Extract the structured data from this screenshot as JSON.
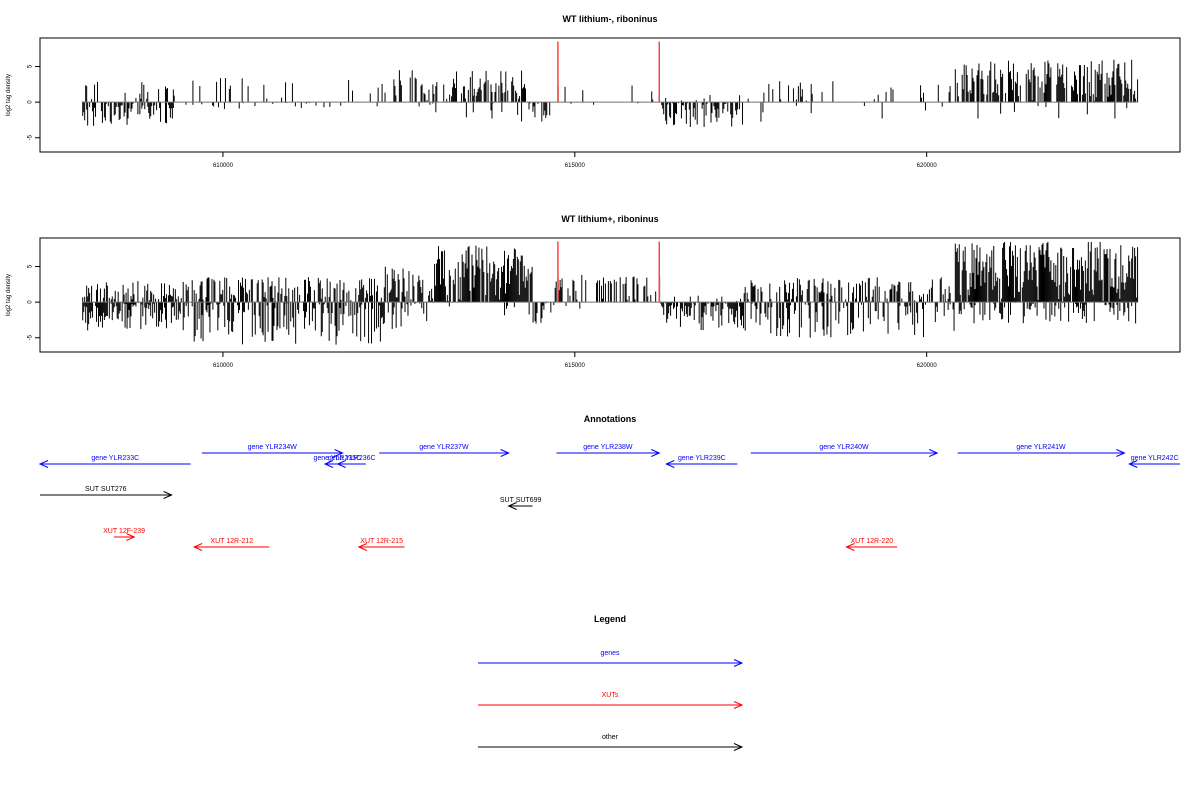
{
  "colors": {
    "genes": "#0000ff",
    "XUTs": "#ff0000",
    "other": "#000000",
    "marker": "#ff4040",
    "axis": "#000000",
    "zeroline": "#707070"
  },
  "chart_data": [
    {
      "type": "bar",
      "title": "WT lithium-, riboninus",
      "ylabel": "log2 tag density",
      "xlim": [
        607400,
        623600
      ],
      "ylim": [
        -7,
        9
      ],
      "xticks": [
        610000,
        615000,
        620000
      ],
      "xtick_labels": [
        "610000",
        "615000",
        "620000"
      ],
      "yticks": [
        -5,
        0,
        5
      ],
      "ytick_labels": [
        "-5",
        "0",
        "5"
      ],
      "data_extent": [
        608000,
        623000
      ],
      "red_markers": [
        614760,
        616200
      ],
      "red_marker_height": 8.5,
      "segments": [
        {
          "start": 608000,
          "end": 609300,
          "density": 0.25,
          "max": 3,
          "neg": 0.6,
          "nmax": 3.5
        },
        {
          "start": 609300,
          "end": 612500,
          "density": 0.12,
          "max": 3.5,
          "neg": 0.1,
          "nmax": 1
        },
        {
          "start": 612500,
          "end": 614300,
          "density": 0.5,
          "max": 4.5,
          "neg": 0.05,
          "nmax": 3
        },
        {
          "start": 614300,
          "end": 614700,
          "density": 0.02,
          "max": 1,
          "neg": 0.5,
          "nmax": 3
        },
        {
          "start": 614700,
          "end": 616200,
          "density": 0.08,
          "max": 2.5,
          "neg": 0.02,
          "nmax": 1
        },
        {
          "start": 616200,
          "end": 617400,
          "density": 0.1,
          "max": 1,
          "neg": 0.7,
          "nmax": 3.5
        },
        {
          "start": 617400,
          "end": 620400,
          "density": 0.12,
          "max": 3,
          "neg": 0.05,
          "nmax": 3
        },
        {
          "start": 620400,
          "end": 623000,
          "density": 0.7,
          "max": 6,
          "neg": 0.05,
          "nmax": 2.5
        }
      ]
    },
    {
      "type": "bar",
      "title": "WT lithium+, riboninus",
      "ylabel": "log2 tag density",
      "xlim": [
        607400,
        623600
      ],
      "ylim": [
        -7,
        9
      ],
      "xticks": [
        610000,
        615000,
        620000
      ],
      "xtick_labels": [
        "610000",
        "615000",
        "620000"
      ],
      "yticks": [
        -5,
        0,
        5
      ],
      "ytick_labels": [
        "-5",
        "0",
        "5"
      ],
      "data_extent": [
        608000,
        623000
      ],
      "red_markers": [
        614760,
        616200
      ],
      "red_marker_height": 8.5,
      "segments": [
        {
          "start": 608000,
          "end": 609500,
          "density": 0.6,
          "max": 3,
          "neg": 0.8,
          "nmax": 4
        },
        {
          "start": 609500,
          "end": 612300,
          "density": 0.55,
          "max": 3.5,
          "neg": 0.6,
          "nmax": 6
        },
        {
          "start": 612300,
          "end": 613000,
          "density": 0.7,
          "max": 5,
          "neg": 0.4,
          "nmax": 4
        },
        {
          "start": 613000,
          "end": 614400,
          "density": 0.9,
          "max": 8,
          "neg": 0.05,
          "nmax": 2
        },
        {
          "start": 614400,
          "end": 614700,
          "density": 0.05,
          "max": 1,
          "neg": 0.7,
          "nmax": 3
        },
        {
          "start": 614700,
          "end": 616200,
          "density": 0.5,
          "max": 4,
          "neg": 0.05,
          "nmax": 1
        },
        {
          "start": 616200,
          "end": 617400,
          "density": 0.1,
          "max": 1,
          "neg": 0.8,
          "nmax": 4
        },
        {
          "start": 617400,
          "end": 620400,
          "density": 0.45,
          "max": 3.5,
          "neg": 0.5,
          "nmax": 5
        },
        {
          "start": 620400,
          "end": 623000,
          "density": 0.95,
          "max": 8.5,
          "neg": 0.4,
          "nmax": 3
        }
      ]
    }
  ],
  "annotations": {
    "title": "Annotations",
    "xlim": [
      607400,
      623600
    ],
    "items": [
      {
        "label": "gene YLR233C",
        "start": 607400,
        "end": 609540,
        "strand": "-",
        "category": "genes",
        "row": 1
      },
      {
        "label": "gene YLR234W",
        "start": 609700,
        "end": 611700,
        "strand": "+",
        "category": "genes",
        "row": 0
      },
      {
        "label": "gene YLR235C",
        "start": 611450,
        "end": 611800,
        "strand": "-",
        "category": "genes",
        "row": 1
      },
      {
        "label": "gene YLR236C",
        "start": 611630,
        "end": 612030,
        "strand": "-",
        "category": "genes",
        "row": 1
      },
      {
        "label": "gene YLR237W",
        "start": 612220,
        "end": 614060,
        "strand": "+",
        "category": "genes",
        "row": 0
      },
      {
        "label": "gene YLR238W",
        "start": 614740,
        "end": 616200,
        "strand": "+",
        "category": "genes",
        "row": 0
      },
      {
        "label": "gene YLR239C",
        "start": 616300,
        "end": 617310,
        "strand": "-",
        "category": "genes",
        "row": 1
      },
      {
        "label": "gene YLR240W",
        "start": 617500,
        "end": 620150,
        "strand": "+",
        "category": "genes",
        "row": 0
      },
      {
        "label": "gene YLR241W",
        "start": 620440,
        "end": 622810,
        "strand": "+",
        "category": "genes",
        "row": 0
      },
      {
        "label": "gene YLR242C",
        "start": 622880,
        "end": 623600,
        "strand": "-",
        "category": "genes",
        "row": 1
      },
      {
        "label": "SUT SUT276",
        "start": 607400,
        "end": 609270,
        "strand": "+",
        "category": "other",
        "row": 2
      },
      {
        "label": "SUT SUT699",
        "start": 614060,
        "end": 614400,
        "strand": "-",
        "category": "other",
        "row": 3
      },
      {
        "label": "XUT 12F-239",
        "start": 608450,
        "end": 608740,
        "strand": "+",
        "category": "XUTs",
        "row": 4
      },
      {
        "label": "XUT 12R-212",
        "start": 609590,
        "end": 610660,
        "strand": "-",
        "category": "XUTs",
        "row": 5
      },
      {
        "label": "XUT 12R-215",
        "start": 611930,
        "end": 612580,
        "strand": "-",
        "category": "XUTs",
        "row": 5
      },
      {
        "label": "XUT 12R-220",
        "start": 618860,
        "end": 619580,
        "strand": "-",
        "category": "XUTs",
        "row": 5
      }
    ]
  },
  "legend": {
    "title": "Legend",
    "items": [
      {
        "label": "genes",
        "category": "genes"
      },
      {
        "label": "XUTs",
        "category": "XUTs"
      },
      {
        "label": "other",
        "category": "other"
      }
    ]
  }
}
